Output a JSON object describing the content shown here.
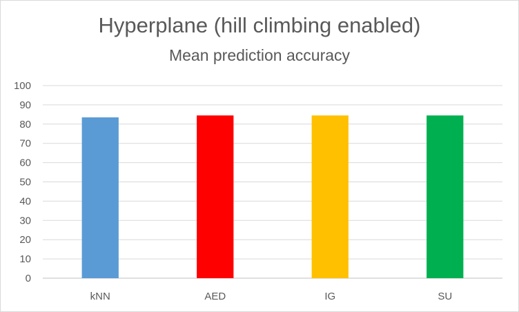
{
  "chart_data": {
    "type": "bar",
    "title": "Hyperplane (hill climbing enabled)",
    "subtitle": "Mean prediction accuracy",
    "categories": [
      "kNN",
      "AED",
      "IG",
      "SU"
    ],
    "values": [
      83.5,
      84.5,
      84.5,
      84.5
    ],
    "colors": [
      "#5b9bd5",
      "#ff0000",
      "#ffc000",
      "#00b050"
    ],
    "ylim": [
      0,
      100
    ],
    "ytick_step": 10,
    "grid": true,
    "legend": "none"
  }
}
